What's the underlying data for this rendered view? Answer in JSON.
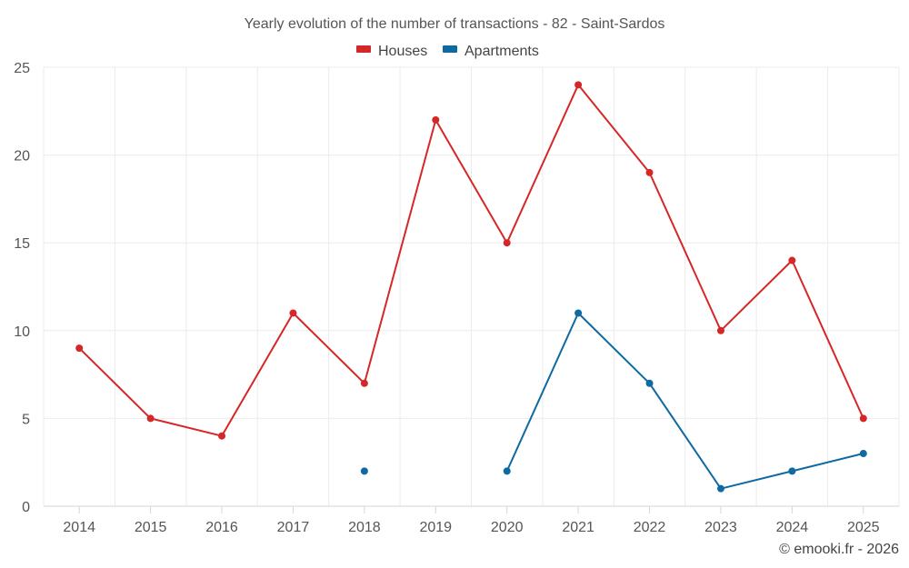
{
  "chart_data": {
    "type": "line",
    "title": "Yearly evolution of the number of transactions - 82 - Saint-Sardos",
    "categories": [
      "2014",
      "2015",
      "2016",
      "2017",
      "2018",
      "2019",
      "2020",
      "2021",
      "2022",
      "2023",
      "2024",
      "2025"
    ],
    "series": [
      {
        "name": "Houses",
        "color": "#d62728",
        "values": [
          9,
          5,
          4,
          11,
          7,
          22,
          15,
          24,
          19,
          10,
          14,
          5
        ]
      },
      {
        "name": "Apartments",
        "color": "#0e6aa0",
        "values": [
          null,
          null,
          null,
          null,
          2,
          null,
          2,
          11,
          7,
          1,
          2,
          3
        ]
      }
    ],
    "ylim": [
      0,
      25
    ],
    "yticks": [
      0,
      5,
      10,
      15,
      20,
      25
    ],
    "xlabel": "",
    "ylabel": "",
    "grid": true,
    "legend_position": "top-center"
  },
  "credit": "© emooki.fr - 2026"
}
